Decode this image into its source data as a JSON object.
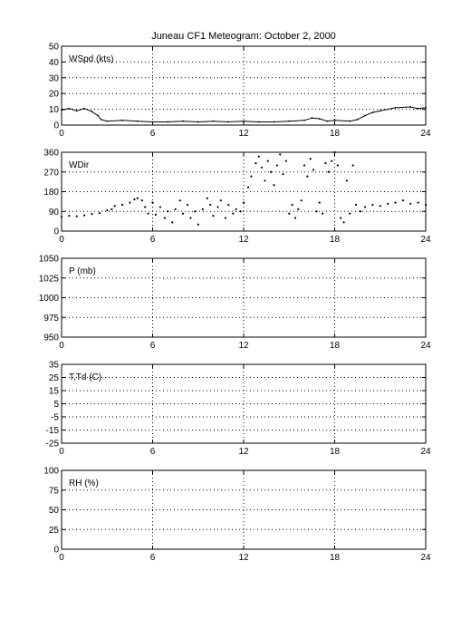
{
  "figure": {
    "title": "Juneau CF1 Meteogram:   October  2, 2000"
  },
  "chart_data": [
    {
      "type": "line",
      "label": "WSpd (kts)",
      "xlim": [
        0,
        24
      ],
      "ylim": [
        0,
        50
      ],
      "xticks": [
        0,
        6,
        12,
        18,
        24
      ],
      "yticks": [
        0,
        10,
        20,
        30,
        40,
        50
      ],
      "grid": true,
      "series": [
        {
          "values": [
            [
              0.0,
              9.5
            ],
            [
              0.5,
              10.5
            ],
            [
              1.0,
              9.0
            ],
            [
              1.5,
              10.5
            ],
            [
              2.0,
              8.5
            ],
            [
              2.4,
              6.0
            ],
            [
              2.6,
              3.5
            ],
            [
              3.0,
              2.5
            ],
            [
              4.0,
              3.0
            ],
            [
              5.0,
              2.5
            ],
            [
              6.0,
              2.0
            ],
            [
              7.0,
              2.0
            ],
            [
              8.0,
              2.5
            ],
            [
              9.0,
              2.0
            ],
            [
              10.0,
              2.5
            ],
            [
              11.0,
              2.0
            ],
            [
              12.0,
              2.5
            ],
            [
              13.0,
              2.0
            ],
            [
              14.0,
              2.0
            ],
            [
              15.0,
              2.5
            ],
            [
              16.0,
              3.0
            ],
            [
              16.5,
              4.5
            ],
            [
              17.0,
              4.0
            ],
            [
              17.5,
              2.5
            ],
            [
              18.0,
              3.0
            ],
            [
              19.0,
              2.5
            ],
            [
              19.5,
              3.5
            ],
            [
              20.0,
              6.0
            ],
            [
              20.5,
              8.0
            ],
            [
              21.0,
              9.0
            ],
            [
              22.0,
              11.0
            ],
            [
              23.0,
              11.5
            ],
            [
              23.5,
              10.5
            ],
            [
              24.0,
              11.0
            ]
          ]
        }
      ]
    },
    {
      "type": "scatter",
      "label": "WDir",
      "xlim": [
        0,
        24
      ],
      "ylim": [
        0,
        360
      ],
      "xticks": [
        0,
        6,
        12,
        18,
        24
      ],
      "yticks": [
        0,
        90,
        180,
        270,
        360
      ],
      "grid": true,
      "series": [
        {
          "values": [
            [
              0.0,
              65
            ],
            [
              0.5,
              70
            ],
            [
              1.0,
              68
            ],
            [
              1.5,
              72
            ],
            [
              2.0,
              78
            ],
            [
              2.5,
              82
            ],
            [
              3.0,
              95
            ],
            [
              3.3,
              100
            ],
            [
              3.5,
              115
            ],
            [
              4.0,
              120
            ],
            [
              4.5,
              130
            ],
            [
              4.8,
              145
            ],
            [
              5.0,
              150
            ],
            [
              5.3,
              140
            ],
            [
              5.5,
              110
            ],
            [
              5.7,
              80
            ],
            [
              6.0,
              130
            ],
            [
              6.2,
              75
            ],
            [
              6.5,
              110
            ],
            [
              6.8,
              60
            ],
            [
              7.0,
              90
            ],
            [
              7.3,
              40
            ],
            [
              7.5,
              100
            ],
            [
              7.8,
              140
            ],
            [
              8.0,
              80
            ],
            [
              8.3,
              120
            ],
            [
              8.5,
              60
            ],
            [
              8.8,
              90
            ],
            [
              9.0,
              30
            ],
            [
              9.3,
              100
            ],
            [
              9.6,
              150
            ],
            [
              9.8,
              120
            ],
            [
              10.0,
              70
            ],
            [
              10.3,
              110
            ],
            [
              10.5,
              140
            ],
            [
              10.8,
              60
            ],
            [
              11.0,
              120
            ],
            [
              11.3,
              80
            ],
            [
              11.5,
              100
            ],
            [
              11.8,
              90
            ],
            [
              12.0,
              130
            ],
            [
              12.3,
              200
            ],
            [
              12.5,
              250
            ],
            [
              12.8,
              310
            ],
            [
              13.0,
              340
            ],
            [
              13.2,
              290
            ],
            [
              13.4,
              230
            ],
            [
              13.6,
              320
            ],
            [
              13.8,
              270
            ],
            [
              14.0,
              210
            ],
            [
              14.2,
              300
            ],
            [
              14.4,
              350
            ],
            [
              14.6,
              260
            ],
            [
              14.8,
              320
            ],
            [
              15.0,
              80
            ],
            [
              15.2,
              120
            ],
            [
              15.4,
              60
            ],
            [
              15.6,
              100
            ],
            [
              15.8,
              140
            ],
            [
              16.0,
              300
            ],
            [
              16.2,
              250
            ],
            [
              16.4,
              330
            ],
            [
              16.6,
              280
            ],
            [
              16.8,
              90
            ],
            [
              17.0,
              130
            ],
            [
              17.2,
              80
            ],
            [
              17.4,
              310
            ],
            [
              17.6,
              270
            ],
            [
              17.8,
              320
            ],
            [
              18.0,
              360
            ],
            [
              18.2,
              300
            ],
            [
              18.4,
              60
            ],
            [
              18.6,
              40
            ],
            [
              18.8,
              230
            ],
            [
              19.0,
              80
            ],
            [
              19.2,
              300
            ],
            [
              19.4,
              120
            ],
            [
              19.7,
              90
            ],
            [
              20.0,
              110
            ],
            [
              20.5,
              120
            ],
            [
              21.0,
              115
            ],
            [
              21.5,
              125
            ],
            [
              22.0,
              130
            ],
            [
              22.5,
              140
            ],
            [
              23.0,
              125
            ],
            [
              23.5,
              130
            ],
            [
              24.0,
              120
            ]
          ]
        }
      ]
    },
    {
      "type": "line",
      "label": "P (mb)",
      "xlim": [
        0,
        24
      ],
      "ylim": [
        950,
        1050
      ],
      "xticks": [
        0,
        6,
        12,
        18,
        24
      ],
      "yticks": [
        950,
        975,
        1000,
        1025,
        1050
      ],
      "grid": true,
      "series": []
    },
    {
      "type": "line",
      "label": "T,Td (C)",
      "xlim": [
        0,
        24
      ],
      "ylim": [
        -25,
        35
      ],
      "xticks": [
        0,
        6,
        12,
        18,
        24
      ],
      "yticks": [
        -25,
        -15,
        -5,
        5,
        15,
        25,
        35
      ],
      "grid": true,
      "series": []
    },
    {
      "type": "line",
      "label": "RH (%)",
      "xlim": [
        0,
        24
      ],
      "ylim": [
        0,
        100
      ],
      "xticks": [
        0,
        6,
        12,
        18,
        24
      ],
      "yticks": [
        0,
        25,
        50,
        75,
        100
      ],
      "grid": true,
      "series": []
    }
  ]
}
